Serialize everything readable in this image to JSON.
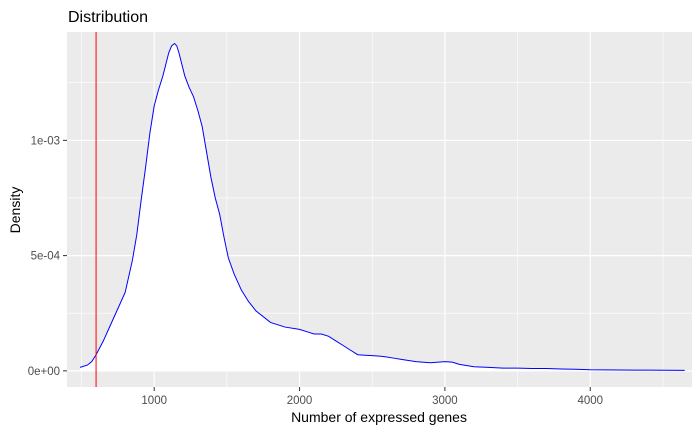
{
  "chart_data": {
    "type": "area",
    "title": "Distribution",
    "xlabel": "Number of expressed genes",
    "ylabel": "Density",
    "xlim": [
      400,
      4700
    ],
    "ylim": [
      -7e-05,
      0.00147
    ],
    "x_ticks": [
      1000,
      2000,
      3000,
      4000
    ],
    "y_ticks": [
      0,
      0.0005,
      0.001
    ],
    "x_tick_labels": [
      "1000",
      "2000",
      "3000",
      "4000"
    ],
    "y_tick_labels": [
      "0e+00",
      "5e-04",
      "1e-03"
    ],
    "grid": true,
    "series": [
      {
        "x": [
          490,
          540,
          570,
          600,
          650,
          700,
          750,
          800,
          850,
          880,
          910,
          940,
          970,
          1000,
          1030,
          1060,
          1080,
          1100,
          1120,
          1140,
          1155,
          1170,
          1190,
          1210,
          1240,
          1270,
          1300,
          1330,
          1360,
          1390,
          1420,
          1450,
          1480,
          1510,
          1550,
          1600,
          1650,
          1700,
          1800,
          1900,
          2000,
          2050,
          2100,
          2150,
          2200,
          2250,
          2300,
          2350,
          2400,
          2450,
          2500,
          2550,
          2600,
          2650,
          2700,
          2800,
          2900,
          3000,
          3050,
          3100,
          3200,
          3300,
          3400,
          3500,
          3600,
          3700,
          3800,
          3900,
          4000,
          4200,
          4400,
          4650
        ],
        "values": [
          1.5e-05,
          2.5e-05,
          4e-05,
          7e-05,
          0.00013,
          0.0002,
          0.00027,
          0.00034,
          0.00048,
          0.00059,
          0.00074,
          0.00088,
          0.00103,
          0.00115,
          0.00122,
          0.00128,
          0.00133,
          0.00138,
          0.00141,
          0.00142,
          0.00141,
          0.00138,
          0.00133,
          0.00128,
          0.00123,
          0.00119,
          0.00113,
          0.00106,
          0.00095,
          0.00084,
          0.00075,
          0.00068,
          0.00058,
          0.00049,
          0.00042,
          0.00035,
          0.0003,
          0.00026,
          0.00021,
          0.00019,
          0.00018,
          0.00017,
          0.00016,
          0.00016,
          0.00015,
          0.00013,
          0.00011,
          9e-05,
          7e-05,
          6.8e-05,
          6.6e-05,
          6.4e-05,
          6e-05,
          5.5e-05,
          5e-05,
          4e-05,
          3.5e-05,
          4e-05,
          3.8e-05,
          2.8e-05,
          1.8e-05,
          1.5e-05,
          1.2e-05,
          1.2e-05,
          1e-05,
          1e-05,
          8e-06,
          7e-06,
          5e-06,
          4e-06,
          3e-06,
          2e-06
        ]
      }
    ],
    "vline": 600
  },
  "colors": {
    "panel": "#ebebeb",
    "grid": "#ffffff",
    "line": "#0000ff",
    "fill": "#ffffff",
    "vline": "#ff0000",
    "tick": "#333333"
  }
}
